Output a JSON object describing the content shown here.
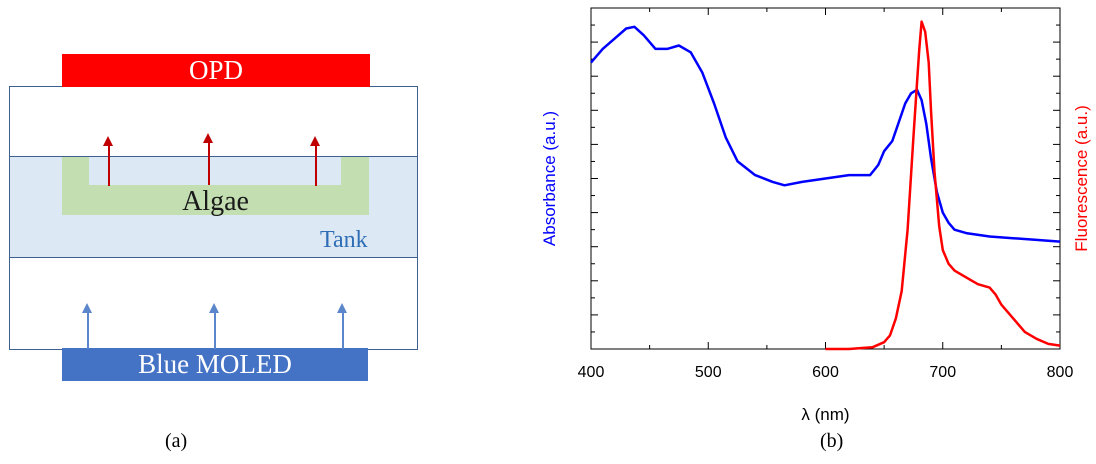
{
  "panel_a": {
    "opd_label": "OPD",
    "algae_label": "Algae",
    "tank_label": "Tank",
    "moled_label": "Blue MOLED",
    "caption": "(a)",
    "colors": {
      "opd": "#ff0000",
      "tank": "#dce9f5",
      "algae": "#c3dfb2",
      "moled": "#4472c4",
      "tank_text": "#2f6db5"
    }
  },
  "panel_b": {
    "caption": "(b)"
  },
  "chart_data": {
    "type": "line",
    "xlabel": "λ (nm)",
    "ylabel_left": "Absorbance (a.u.)",
    "ylabel_right": "Fluorescence (a.u.)",
    "xlim": [
      400,
      800
    ],
    "ylim": [
      0,
      1
    ],
    "x_ticks": [
      400,
      500,
      600,
      700,
      800
    ],
    "grid": false,
    "series": [
      {
        "axis": "left",
        "color": "#0000ff",
        "x": [
          400,
          410,
          420,
          430,
          437,
          445,
          455,
          465,
          475,
          485,
          495,
          505,
          515,
          525,
          540,
          555,
          565,
          580,
          600,
          620,
          630,
          638,
          645,
          650,
          657,
          662,
          668,
          673,
          678,
          682,
          686,
          690,
          695,
          700,
          705,
          710,
          720,
          740,
          760,
          780,
          800
        ],
        "values": [
          0.84,
          0.88,
          0.91,
          0.94,
          0.945,
          0.92,
          0.88,
          0.88,
          0.89,
          0.87,
          0.81,
          0.72,
          0.62,
          0.55,
          0.51,
          0.49,
          0.48,
          0.49,
          0.5,
          0.51,
          0.51,
          0.51,
          0.54,
          0.58,
          0.61,
          0.66,
          0.72,
          0.75,
          0.76,
          0.73,
          0.66,
          0.56,
          0.46,
          0.4,
          0.37,
          0.35,
          0.34,
          0.33,
          0.325,
          0.32,
          0.315
        ]
      },
      {
        "axis": "right",
        "color": "#ff0000",
        "x": [
          600,
          620,
          640,
          650,
          655,
          660,
          665,
          670,
          675,
          678,
          680,
          682,
          685,
          688,
          690,
          693,
          697,
          700,
          705,
          710,
          720,
          730,
          740,
          745,
          750,
          760,
          770,
          780,
          790,
          800
        ],
        "values": [
          0.0,
          0.0,
          0.005,
          0.02,
          0.04,
          0.09,
          0.17,
          0.35,
          0.62,
          0.78,
          0.88,
          0.96,
          0.93,
          0.84,
          0.7,
          0.52,
          0.36,
          0.29,
          0.25,
          0.23,
          0.21,
          0.19,
          0.18,
          0.16,
          0.13,
          0.09,
          0.05,
          0.03,
          0.015,
          0.01
        ]
      }
    ]
  }
}
